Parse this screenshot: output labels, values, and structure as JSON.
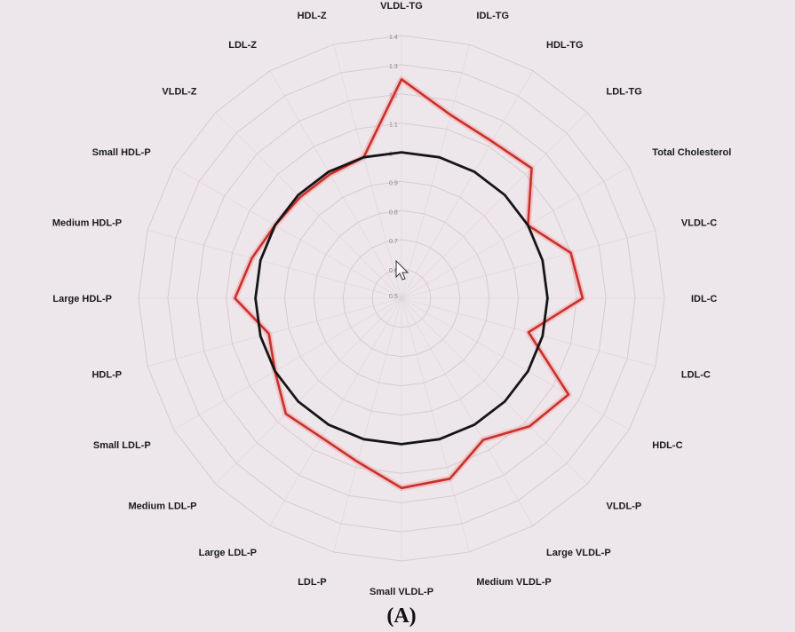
{
  "chart_data": {
    "type": "radar",
    "categories": [
      "VLDL-TG",
      "IDL-TG",
      "HDL-TG",
      "LDL-TG",
      "Total Cholesterol",
      "VLDL-C",
      "IDL-C",
      "LDL-C",
      "HDL-C",
      "VLDL-P",
      "Large VLDL-P",
      "Medium VLDL-P",
      "Small VLDL-P",
      "LDL-P",
      "Large LDL-P",
      "Medium LDL-P",
      "Small LDL-P",
      "HDL-P",
      "Large HDL-P",
      "Medium HDL-P",
      "Small HDL-P",
      "VLDL-Z",
      "LDL-Z",
      "HDL-Z"
    ],
    "tick_labels": [
      "0.5",
      "0.6",
      "0.7",
      "0.8",
      "0.9",
      "1",
      "1.1",
      "1.2",
      "1.3",
      "1.4"
    ],
    "range": [
      0.5,
      1.4
    ],
    "series": [
      {
        "color": "#c9302c",
        "values": [
          1.25,
          1.15,
          1.12,
          1.13,
          1.0,
          1.1,
          1.12,
          0.95,
          1.16,
          1.12,
          1.06,
          1.14,
          1.15,
          1.08,
          1.05,
          1.06,
          1.0,
          0.97,
          1.07,
          1.03,
          1.0,
          0.99,
          0.99,
          1.0
        ]
      },
      {
        "color": "#151515",
        "values": [
          1,
          1,
          1,
          1,
          1,
          1,
          1,
          1,
          1,
          1,
          1,
          1,
          1,
          1,
          1,
          1,
          1,
          1,
          1,
          1,
          1,
          1,
          1,
          1
        ]
      }
    ],
    "grid": true,
    "legend": "none"
  },
  "caption": "(A)",
  "pointer_icon": "arrow-cursor-icon"
}
